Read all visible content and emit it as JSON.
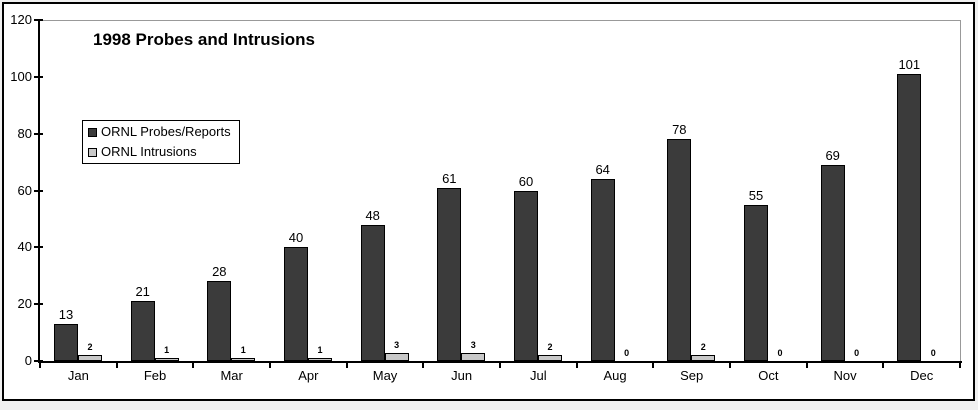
{
  "chart_data": {
    "type": "bar",
    "title": "1998 Probes and Intrusions",
    "categories": [
      "Jan",
      "Feb",
      "Mar",
      "Apr",
      "May",
      "Jun",
      "Jul",
      "Aug",
      "Sep",
      "Oct",
      "Nov",
      "Dec"
    ],
    "series": [
      {
        "name": "ORNL Probes/Reports",
        "color": "#3b3b3b",
        "values": [
          13,
          21,
          28,
          40,
          48,
          61,
          60,
          64,
          78,
          55,
          69,
          101
        ]
      },
      {
        "name": "ORNL Intrusions",
        "color": "#c8c8c8",
        "values": [
          2,
          1,
          1,
          1,
          3,
          3,
          2,
          0,
          2,
          0,
          0,
          0
        ]
      }
    ],
    "xlabel": "",
    "ylabel": "",
    "ylim": [
      0,
      120
    ],
    "yticks": [
      0,
      20,
      40,
      60,
      80,
      100,
      120
    ],
    "grid": false,
    "data_labels": true,
    "legend_position": "upper-left-inside",
    "axis_color": "#000000",
    "plot_border_color": "#999999",
    "background_color": "#ffffff"
  }
}
